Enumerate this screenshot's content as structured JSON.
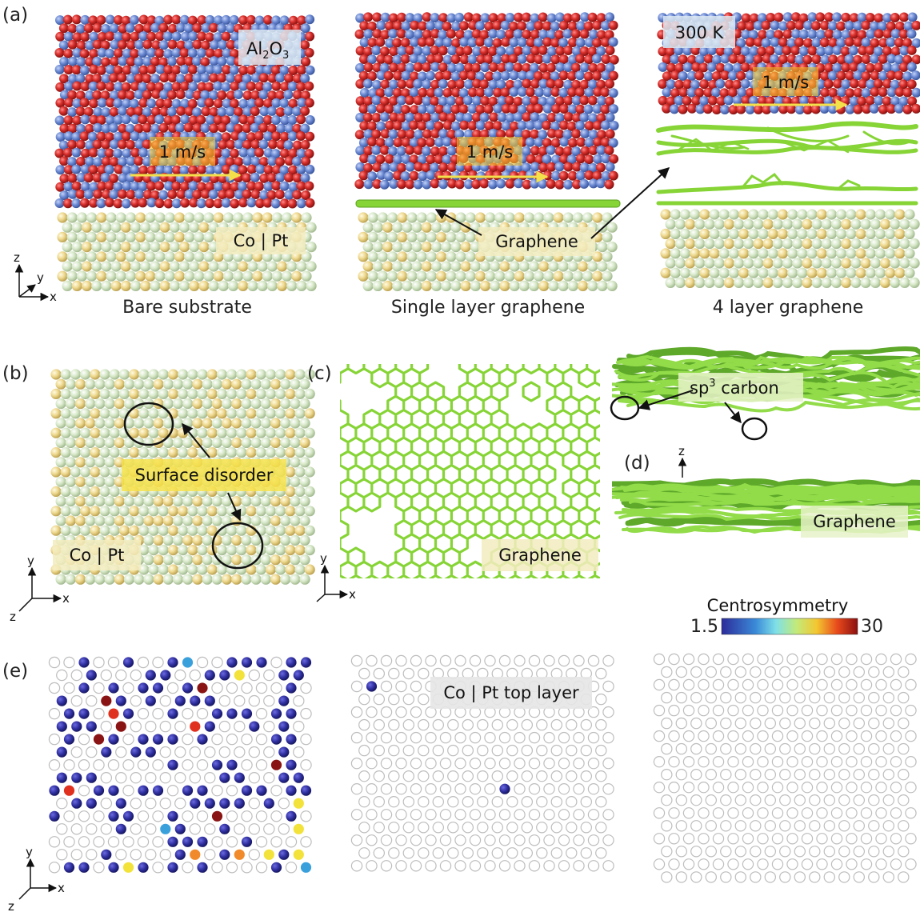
{
  "panel_labels": {
    "a": "(a)",
    "b": "(b)",
    "c": "(c)",
    "d": "(d)",
    "e": "(e)"
  },
  "captions": {
    "bare": "Bare substrate",
    "single": "Single layer graphene",
    "four": "4 layer graphene"
  },
  "labels": {
    "al2o3_main": "Al",
    "al2o3_sub1": "2",
    "al2o3_o": "O",
    "al2o3_sub2": "3",
    "speed": "1 m/s",
    "copt": "Co | Pt",
    "graphene": "Graphene",
    "temp": "300 K",
    "surface_disorder": "Surface disorder",
    "sp3_pre": "sp",
    "sp3_sup": "3",
    "sp3_post": " carbon",
    "copt_top": "Co | Pt top layer"
  },
  "axes": {
    "x": "x",
    "y": "y",
    "z": "z"
  },
  "colorbar": {
    "title": "Centrosymmetry",
    "min": "1.5",
    "max": "30"
  },
  "colors": {
    "alumina_red": "#cc2a2a",
    "alumina_blue": "#5b7fcf",
    "substrate_green": "#d2e6c2",
    "substrate_yellow": "#efd98c",
    "graphene": "#86d436",
    "arrow": "#f4e04a"
  }
}
